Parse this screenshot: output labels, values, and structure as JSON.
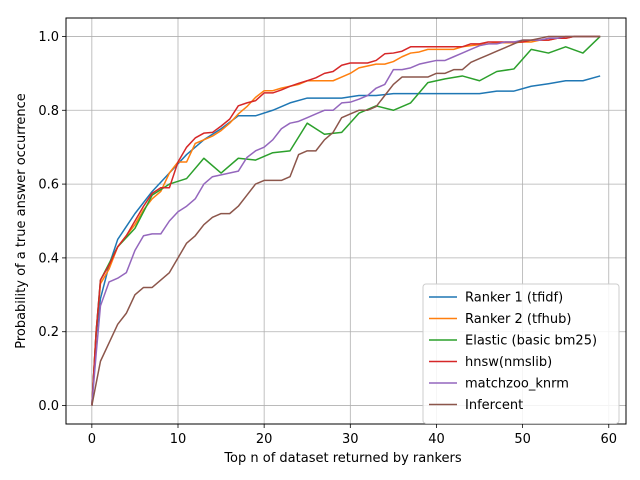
{
  "chart_data": {
    "type": "line",
    "title": "",
    "xlabel": "Top n of dataset returned by rankers",
    "ylabel": "Probability of a true answer occurrence",
    "xlim": [
      -3,
      62
    ],
    "ylim": [
      -0.05,
      1.05
    ],
    "xticks": [
      0,
      10,
      20,
      30,
      40,
      50,
      60
    ],
    "yticks": [
      0.0,
      0.2,
      0.4,
      0.6,
      0.8,
      1.0
    ],
    "xtick_labels": [
      "0",
      "10",
      "20",
      "30",
      "40",
      "50",
      "60"
    ],
    "ytick_labels": [
      "0.0",
      "0.2",
      "0.4",
      "0.6",
      "0.8",
      "1.0"
    ],
    "grid": true,
    "legend_position": "bottom-right",
    "series": [
      {
        "name": "Ranker 1 (tfidf)",
        "color": "#1f77b4",
        "x": [
          0,
          0.5,
          1,
          2,
          3,
          5,
          7,
          9,
          11,
          13,
          15,
          17,
          19,
          21,
          23,
          25,
          27,
          29,
          31,
          33,
          35,
          37,
          39,
          41,
          43,
          45,
          47,
          49,
          51,
          53,
          55,
          57,
          59
        ],
        "y": [
          0,
          0.19,
          0.29,
          0.38,
          0.45,
          0.52,
          0.58,
          0.63,
          0.68,
          0.72,
          0.75,
          0.785,
          0.785,
          0.8,
          0.82,
          0.833,
          0.833,
          0.833,
          0.84,
          0.84,
          0.845,
          0.845,
          0.845,
          0.845,
          0.845,
          0.845,
          0.852,
          0.852,
          0.865,
          0.872,
          0.88,
          0.88,
          0.893
        ]
      },
      {
        "name": "Ranker 2 (tfhub)",
        "color": "#ff7f0e",
        "x": [
          0,
          0.5,
          1,
          2,
          3,
          4,
          5,
          6,
          7,
          8,
          9,
          10,
          11,
          12,
          13,
          14,
          15,
          16,
          17,
          18,
          19,
          20,
          21,
          22,
          23,
          24,
          25,
          26,
          27,
          28,
          29,
          30,
          31,
          32,
          33,
          34,
          35,
          36,
          37,
          38,
          39,
          40,
          41,
          42,
          43,
          44,
          45,
          46,
          47,
          48,
          49,
          50,
          51,
          52,
          53,
          54,
          55,
          56,
          57,
          58,
          59
        ],
        "y": [
          0,
          0.2,
          0.33,
          0.37,
          0.43,
          0.46,
          0.49,
          0.53,
          0.56,
          0.58,
          0.63,
          0.66,
          0.66,
          0.71,
          0.72,
          0.73,
          0.745,
          0.765,
          0.79,
          0.81,
          0.835,
          0.853,
          0.853,
          0.86,
          0.865,
          0.87,
          0.88,
          0.88,
          0.88,
          0.88,
          0.89,
          0.9,
          0.915,
          0.92,
          0.925,
          0.925,
          0.932,
          0.945,
          0.955,
          0.958,
          0.965,
          0.965,
          0.965,
          0.965,
          0.972,
          0.975,
          0.978,
          0.98,
          0.983,
          0.983,
          0.983,
          0.985,
          0.985,
          0.99,
          0.99,
          0.995,
          0.995,
          1.0,
          1.0,
          1.0,
          1.0
        ]
      },
      {
        "name": "Elastic (basic bm25)",
        "color": "#2ca02c",
        "x": [
          0,
          0.5,
          1,
          3,
          5,
          7,
          9,
          11,
          13,
          15,
          17,
          19,
          21,
          23,
          25,
          27,
          29,
          31,
          33,
          35,
          37,
          39,
          41,
          43,
          45,
          47,
          49,
          51,
          53,
          55,
          57,
          59
        ],
        "y": [
          0,
          0.2,
          0.34,
          0.43,
          0.48,
          0.57,
          0.6,
          0.615,
          0.67,
          0.63,
          0.67,
          0.665,
          0.685,
          0.69,
          0.765,
          0.735,
          0.74,
          0.792,
          0.812,
          0.8,
          0.82,
          0.875,
          0.885,
          0.893,
          0.88,
          0.905,
          0.912,
          0.965,
          0.955,
          0.972,
          0.955,
          1.0
        ]
      },
      {
        "name": "hnsw(nmslib)",
        "color": "#d62728",
        "x": [
          0,
          0.5,
          1,
          2,
          3,
          4,
          5,
          6,
          7,
          8,
          9,
          10,
          11,
          12,
          13,
          14,
          15,
          16,
          17,
          18,
          19,
          20,
          21,
          22,
          23,
          24,
          25,
          26,
          27,
          28,
          29,
          30,
          31,
          32,
          33,
          34,
          35,
          36,
          37,
          38,
          39,
          40,
          41,
          42,
          43,
          44,
          45,
          46,
          47,
          48,
          49,
          50,
          51,
          52,
          53,
          54,
          55,
          56,
          57,
          58,
          59
        ],
        "y": [
          0,
          0.2,
          0.34,
          0.38,
          0.43,
          0.46,
          0.5,
          0.54,
          0.575,
          0.59,
          0.59,
          0.66,
          0.7,
          0.725,
          0.738,
          0.74,
          0.757,
          0.776,
          0.812,
          0.82,
          0.826,
          0.847,
          0.847,
          0.855,
          0.865,
          0.873,
          0.88,
          0.888,
          0.9,
          0.905,
          0.922,
          0.928,
          0.928,
          0.928,
          0.935,
          0.953,
          0.955,
          0.96,
          0.972,
          0.972,
          0.972,
          0.972,
          0.972,
          0.972,
          0.972,
          0.98,
          0.98,
          0.985,
          0.985,
          0.985,
          0.985,
          0.985,
          0.99,
          0.99,
          0.99,
          0.995,
          0.995,
          1.0,
          1.0,
          1.0,
          1.0
        ]
      },
      {
        "name": "matchzoo_knrm",
        "color": "#9467bd",
        "x": [
          0,
          0.5,
          1,
          2,
          3,
          4,
          5,
          6,
          7,
          8,
          9,
          10,
          11,
          12,
          13,
          14,
          15,
          16,
          17,
          18,
          19,
          20,
          21,
          22,
          23,
          24,
          25,
          26,
          27,
          28,
          29,
          30,
          31,
          32,
          33,
          34,
          35,
          36,
          37,
          38,
          39,
          40,
          41,
          42,
          43,
          44,
          45,
          46,
          47,
          48,
          49,
          50,
          51,
          52,
          53,
          54,
          55,
          56,
          57,
          58,
          59
        ],
        "y": [
          0,
          0.14,
          0.27,
          0.335,
          0.345,
          0.36,
          0.42,
          0.46,
          0.465,
          0.465,
          0.5,
          0.525,
          0.54,
          0.56,
          0.6,
          0.62,
          0.625,
          0.63,
          0.635,
          0.672,
          0.69,
          0.7,
          0.72,
          0.75,
          0.765,
          0.77,
          0.78,
          0.79,
          0.8,
          0.8,
          0.82,
          0.822,
          0.83,
          0.84,
          0.86,
          0.87,
          0.91,
          0.91,
          0.915,
          0.925,
          0.93,
          0.935,
          0.935,
          0.945,
          0.955,
          0.965,
          0.975,
          0.98,
          0.98,
          0.985,
          0.985,
          0.99,
          0.99,
          0.99,
          0.995,
          0.995,
          1.0,
          1.0,
          1.0,
          1.0,
          1.0
        ]
      },
      {
        "name": "Infercent",
        "color": "#8c564b",
        "x": [
          0,
          0.5,
          1,
          2,
          3,
          4,
          5,
          6,
          7,
          8,
          9,
          10,
          11,
          12,
          13,
          14,
          15,
          16,
          17,
          18,
          19,
          20,
          21,
          22,
          23,
          24,
          25,
          26,
          27,
          28,
          29,
          30,
          31,
          32,
          33,
          34,
          35,
          36,
          37,
          38,
          39,
          40,
          41,
          42,
          43,
          44,
          45,
          46,
          47,
          48,
          49,
          50,
          51,
          52,
          53,
          54,
          55,
          56,
          57,
          58,
          59
        ],
        "y": [
          0,
          0.06,
          0.12,
          0.17,
          0.22,
          0.25,
          0.3,
          0.32,
          0.32,
          0.34,
          0.36,
          0.4,
          0.44,
          0.46,
          0.49,
          0.51,
          0.52,
          0.52,
          0.54,
          0.57,
          0.6,
          0.61,
          0.61,
          0.61,
          0.62,
          0.68,
          0.69,
          0.69,
          0.72,
          0.74,
          0.78,
          0.79,
          0.8,
          0.8,
          0.81,
          0.84,
          0.87,
          0.89,
          0.89,
          0.89,
          0.89,
          0.9,
          0.9,
          0.91,
          0.91,
          0.93,
          0.94,
          0.95,
          0.96,
          0.97,
          0.98,
          0.99,
          0.99,
          0.995,
          1.0,
          1.0,
          1.0,
          1.0,
          1.0,
          1.0,
          1.0
        ]
      }
    ]
  }
}
